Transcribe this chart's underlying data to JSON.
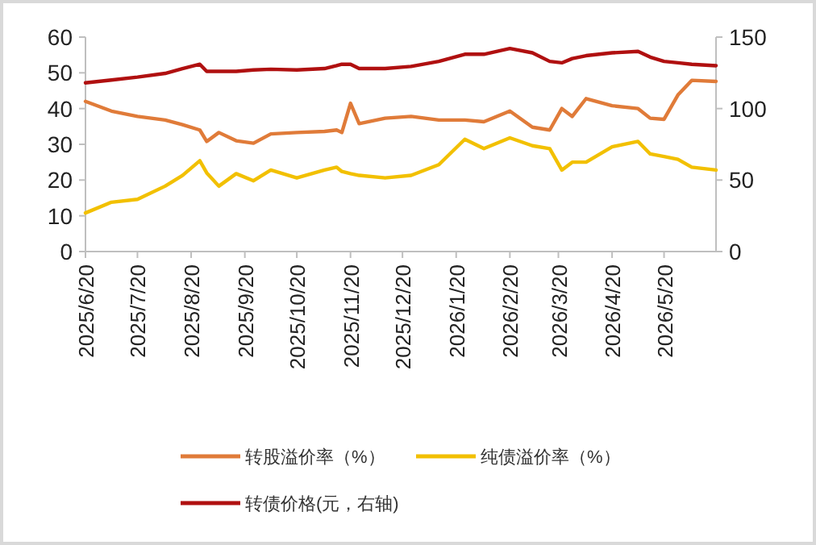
{
  "chart_data": {
    "type": "line",
    "x": [
      "2025-06-20",
      "2025-07-05",
      "2025-07-20",
      "2025-08-05",
      "2025-08-15",
      "2025-08-25",
      "2025-08-29",
      "2025-09-05",
      "2025-09-15",
      "2025-09-25",
      "2025-10-05",
      "2025-10-20",
      "2025-11-05",
      "2025-11-12",
      "2025-11-15",
      "2025-11-20",
      "2025-11-25",
      "2025-12-10",
      "2025-12-25",
      "2026-01-10",
      "2026-01-25",
      "2026-02-05",
      "2026-02-20",
      "2026-03-05",
      "2026-03-15",
      "2026-03-22",
      "2026-03-28",
      "2026-04-05",
      "2026-04-20",
      "2026-05-05",
      "2026-05-12",
      "2026-05-20",
      "2026-05-28",
      "2026-06-05",
      "2026-06-19"
    ],
    "series": [
      {
        "name": "转股溢价率（%）",
        "color": "#e07b39",
        "values": [
          42,
          39.3,
          37.8,
          36.8,
          35.5,
          34,
          30.8,
          33.3,
          31,
          30.3,
          32.9,
          33.3,
          33.6,
          34,
          33.3,
          41.5,
          35.8,
          37.3,
          37.8,
          36.8,
          36.8,
          36.3,
          39.3,
          34.8,
          34,
          40,
          37.8,
          42.8,
          40.8,
          40,
          37.3,
          37,
          43.8,
          47.9,
          47.6
        ]
      },
      {
        "name": "纯债溢价率（%）",
        "color": "#f2c000",
        "values": [
          10.8,
          13.8,
          14.6,
          18.3,
          21.3,
          25.4,
          22,
          18.3,
          21.8,
          19.8,
          22.8,
          20.6,
          22.8,
          23.6,
          22.4,
          21.8,
          21.3,
          20.6,
          21.3,
          24.3,
          31.4,
          28.8,
          31.8,
          29.6,
          28.8,
          22.8,
          25,
          25,
          29.3,
          30.8,
          27.3,
          26.6,
          25.8,
          23.6,
          22.8
        ]
      },
      {
        "name": "转债价格(元，右轴)",
        "color": "#b01010",
        "axis": "y2",
        "values": [
          118,
          120,
          122,
          124.6,
          128,
          131,
          126,
          126,
          126,
          127,
          127.5,
          127,
          128,
          130,
          131,
          131,
          128,
          128,
          129.5,
          133,
          138,
          138,
          142,
          139,
          133,
          132,
          135,
          137,
          139,
          140,
          136,
          133,
          132,
          131,
          130
        ]
      }
    ],
    "xlim": [
      "2025-06-20",
      "2026-06-19"
    ],
    "xticks": [
      {
        "value": "2025-06-20",
        "label": "2025/6/20"
      },
      {
        "value": "2025-07-20",
        "label": "2025/7/20"
      },
      {
        "value": "2025-08-20",
        "label": "2025/8/20"
      },
      {
        "value": "2025-09-20",
        "label": "2025/9/20"
      },
      {
        "value": "2025-10-20",
        "label": "2025/10/20"
      },
      {
        "value": "2025-11-20",
        "label": "2025/11/20"
      },
      {
        "value": "2025-12-20",
        "label": "2025/12/20"
      },
      {
        "value": "2026-01-20",
        "label": "2026/1/20"
      },
      {
        "value": "2026-02-20",
        "label": "2026/2/20"
      },
      {
        "value": "2026-03-20",
        "label": "2026/3/20"
      },
      {
        "value": "2026-04-20",
        "label": "2026/4/20"
      },
      {
        "value": "2026-05-20",
        "label": "2026/5/20"
      }
    ],
    "ylim": [
      0,
      60
    ],
    "yticks": [
      0,
      10,
      20,
      30,
      40,
      50,
      60
    ],
    "y2lim": [
      0,
      150
    ],
    "y2ticks": [
      0,
      50,
      100,
      150
    ],
    "legend": "bottom"
  }
}
